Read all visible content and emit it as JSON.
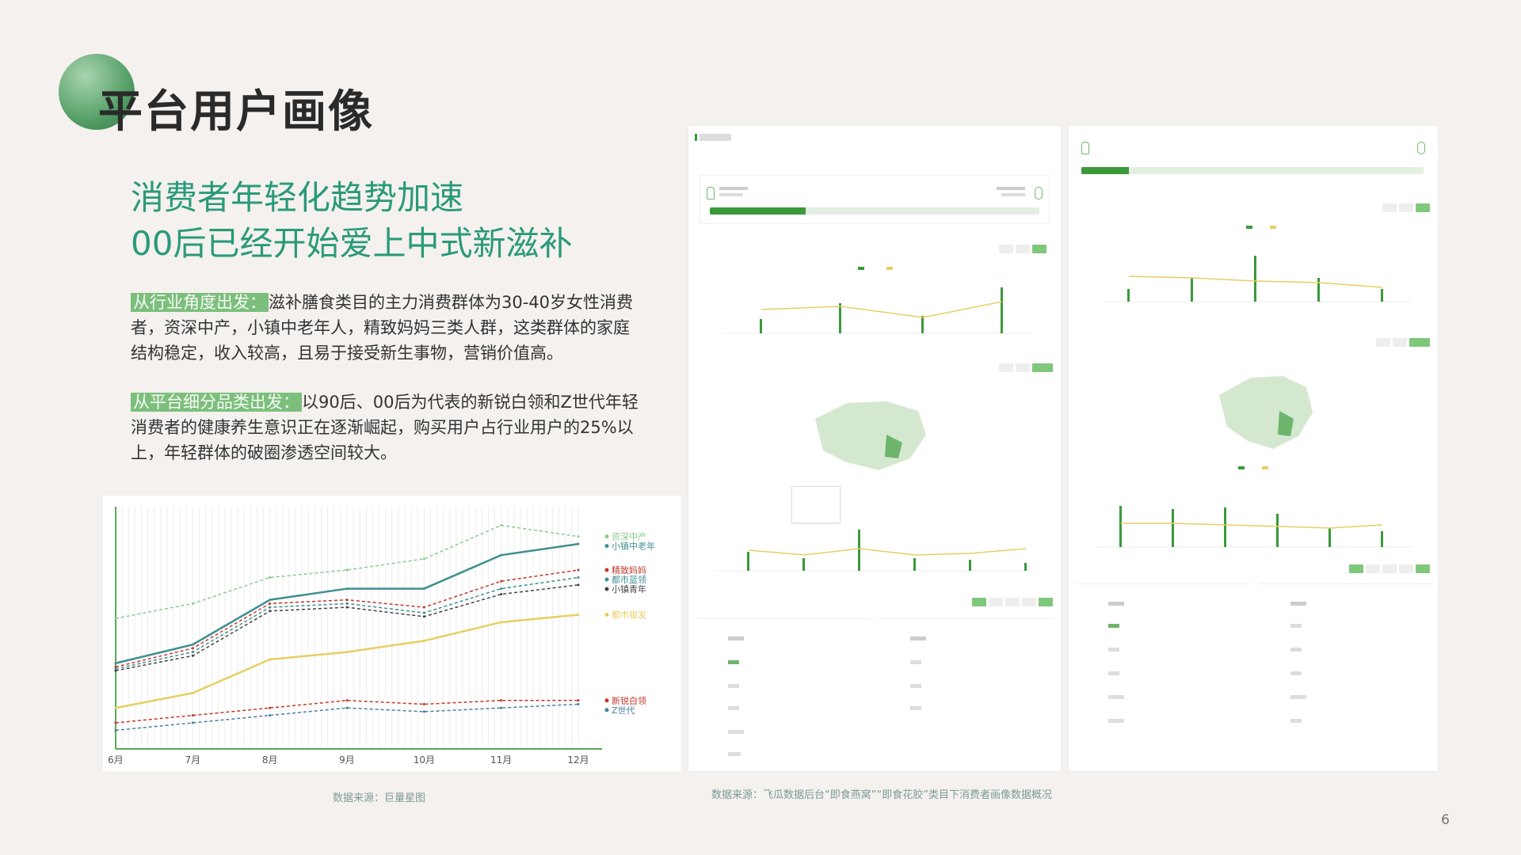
{
  "header": {
    "title": "平台用户画像"
  },
  "subtitle": {
    "line1": "消费者年轻化趋势加速",
    "line2": "00后已经开始爱上中式新滋补"
  },
  "paragraphs": [
    {
      "tag": "从行业角度出发：",
      "text": "滋补膳食类目的主力消费群体为30-40岁女性消费者，资深中产，小镇中老年人，精致妈妈三类人群，这类群体的家庭结构稳定，收入较高，且易于接受新生事物，营销价值高。"
    },
    {
      "tag": "从平台细分品类出发：",
      "text": "以90后、00后为代表的新锐白领和Z世代年轻消费者的健康养生意识正在逐渐崛起，购买用户占行业用户的25%以上，年轻群体的破圈渗透空间较大。"
    }
  ],
  "chart_data": {
    "type": "line",
    "categories": [
      "6月",
      "7月",
      "8月",
      "9月",
      "10月",
      "11月",
      "12月"
    ],
    "series": [
      {
        "name": "资深中产",
        "values": [
          70,
          78,
          92,
          96,
          102,
          120,
          114
        ]
      },
      {
        "name": "小镇中老年",
        "values": [
          46,
          56,
          80,
          86,
          86,
          104,
          110
        ]
      },
      {
        "name": "精致妈妈",
        "values": [
          44,
          54,
          78,
          80,
          76,
          90,
          96
        ]
      },
      {
        "name": "都市蓝领",
        "values": [
          43,
          52,
          76,
          78,
          73,
          86,
          92
        ]
      },
      {
        "name": "小镇青年",
        "values": [
          42,
          50,
          74,
          76,
          71,
          83,
          88
        ]
      },
      {
        "name": "都市银发",
        "values": [
          22,
          30,
          48,
          52,
          58,
          68,
          72
        ]
      },
      {
        "name": "新锐白领",
        "values": [
          14,
          18,
          22,
          26,
          24,
          26,
          26
        ]
      },
      {
        "name": "Z世代",
        "values": [
          10,
          14,
          18,
          22,
          20,
          22,
          24
        ]
      }
    ],
    "colors": [
      "#8fc98f",
      "#3f8f8f",
      "#c0392b",
      "#3f8f8f",
      "#444444",
      "#e6cf62",
      "#c0392b",
      "#4a7f9f"
    ],
    "ylim": [
      0,
      130
    ],
    "grid": true,
    "legend": "right-end-labels"
  },
  "sources": {
    "left": "数据来源：巨量星图",
    "right": "数据来源：飞瓜数据后台“即食燕窝”“即食花胶”类目下消费者画像数据概况"
  },
  "page_number": "6"
}
